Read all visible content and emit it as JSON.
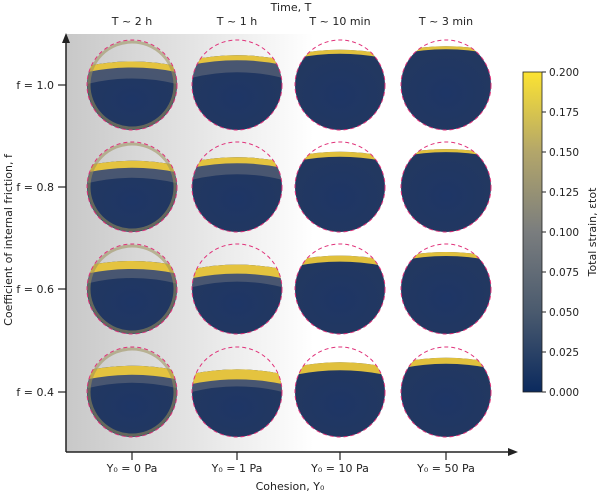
{
  "figure": {
    "top_axis_label": "Time, T",
    "bottom_axis_label": "Cohesion, Y₀",
    "left_axis_label": "Coefficient of internal friction, f",
    "time_labels": [
      "T ~ 2 h",
      "T ~ 1 h",
      "T ~ 10 min",
      "T ~ 3 min"
    ],
    "cohesion_labels": [
      "Y₀ = 0 Pa",
      "Y₀ = 1 Pa",
      "Y₀ = 10 Pa",
      "Y₀ = 50 Pa"
    ],
    "friction_labels": [
      "f = 1.0",
      "f = 0.8",
      "f = 0.6",
      "f = 0.4"
    ]
  },
  "colorbar": {
    "label": "Total strain, εtot",
    "ticks": [
      "0.000",
      "0.025",
      "0.050",
      "0.075",
      "0.100",
      "0.125",
      "0.150",
      "0.175",
      "0.200"
    ],
    "min": 0.0,
    "max": 0.2,
    "colors": [
      "#0b2a5e",
      "#4a5a6e",
      "#7a7d7e",
      "#b3a66a",
      "#fce332"
    ]
  },
  "colors": {
    "dashed_outline": "#e0327a",
    "dark_fill": "#1a3464",
    "strain_high": "#f5cf3a"
  }
}
